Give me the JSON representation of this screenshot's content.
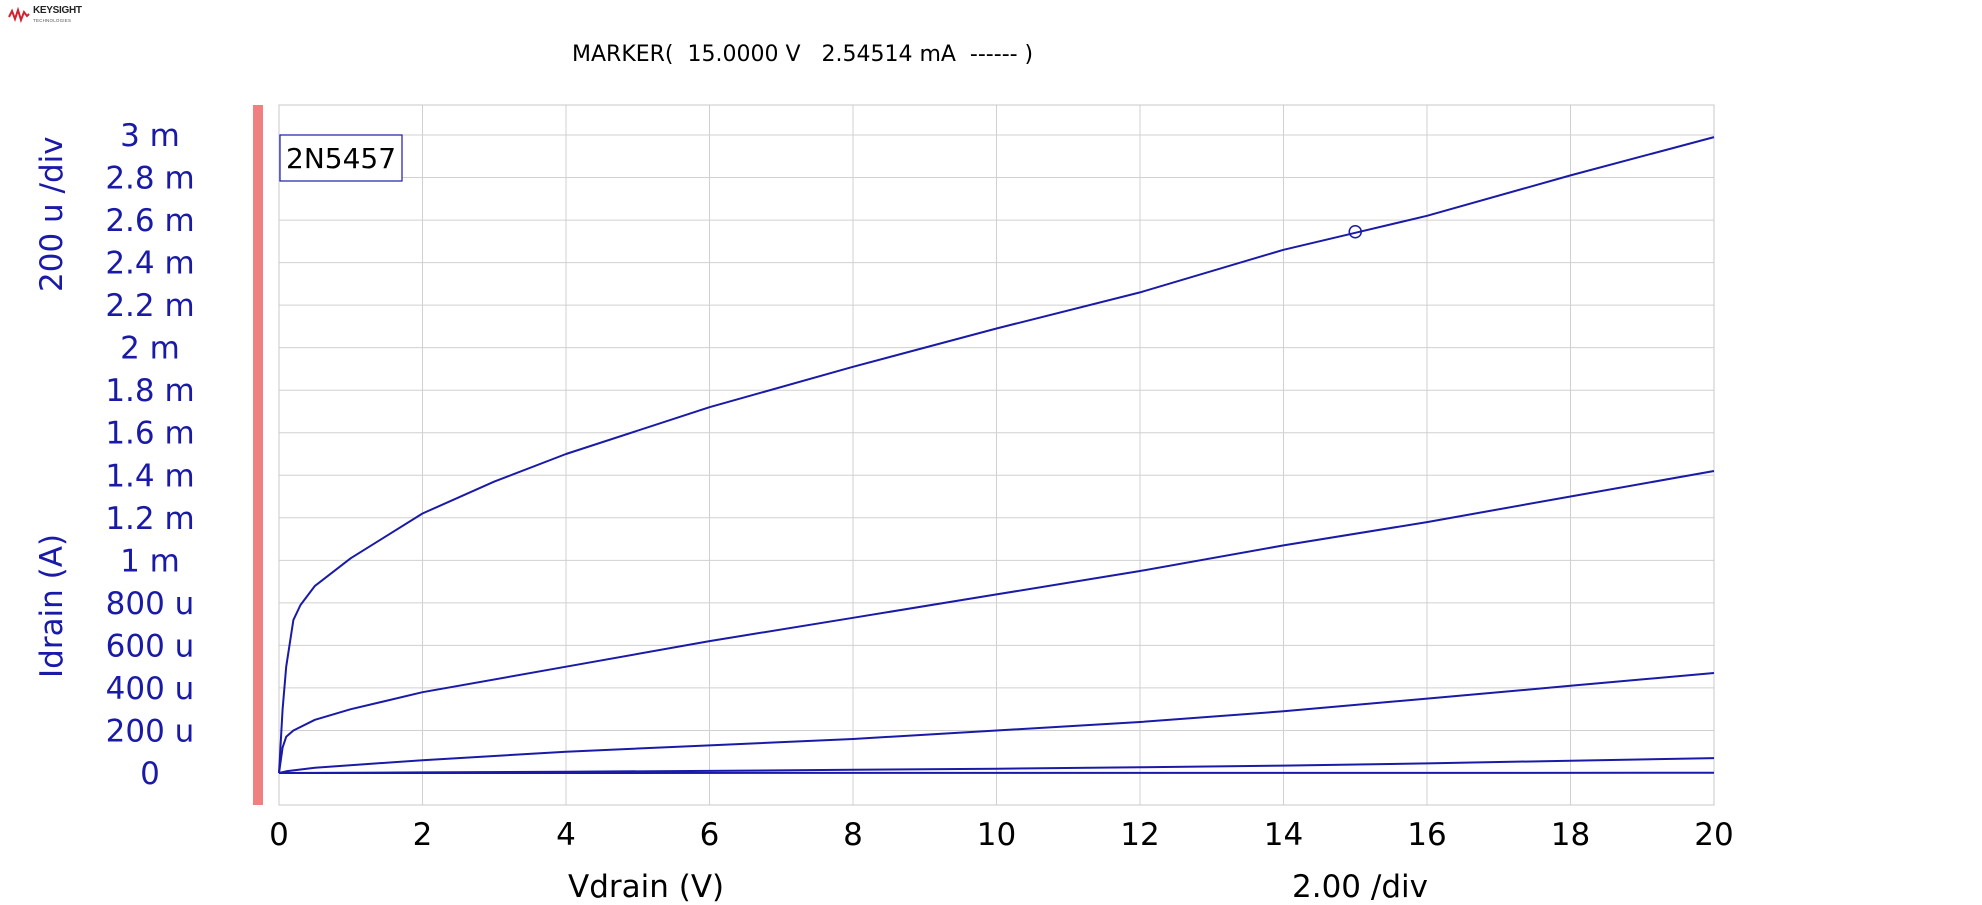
{
  "brand": {
    "name": "KEYSIGHT",
    "tagline": "TECHNOLOGIES"
  },
  "marker_readout": "MARKER(  15.0000 V   2.54514 mA  ------ )",
  "colors": {
    "trace": "#1a1aa8",
    "grid": "#d0d0d0",
    "left_bar": "#f08080",
    "y_text": "#1a1aa8",
    "x_text": "#000000"
  },
  "chart_data": {
    "type": "line",
    "title": "2N5457",
    "xlabel": "Vdrain (V)",
    "ylabel": "Idrain (A)",
    "x_scale": "2.00  /div",
    "y_scale": "200 u /div",
    "xlim": [
      0,
      20
    ],
    "ylim": [
      0,
      0.003
    ],
    "grid": true,
    "x_ticks": [
      0,
      2,
      4,
      6,
      8,
      10,
      12,
      14,
      16,
      18,
      20
    ],
    "x_tick_labels": [
      "0",
      "2",
      "4",
      "6",
      "8",
      "10",
      "12",
      "14",
      "16",
      "18",
      "20"
    ],
    "y_ticks": [
      0,
      0.0002,
      0.0004,
      0.0006,
      0.0008,
      0.001,
      0.0012,
      0.0014,
      0.0016,
      0.0018,
      0.002,
      0.0022,
      0.0024,
      0.0026,
      0.0028,
      0.003
    ],
    "y_tick_labels": [
      "0",
      "200 u",
      "400 u",
      "600 u",
      "800 u",
      "1 m",
      "1.2 m",
      "1.4 m",
      "1.6 m",
      "1.8 m",
      "2 m",
      "2.2 m",
      "2.4 m",
      "2.6 m",
      "2.8 m",
      "3 m"
    ],
    "series": [
      {
        "x": [
          0,
          0.05,
          0.1,
          0.2,
          0.3,
          0.5,
          1,
          2,
          3,
          4,
          6,
          8,
          10,
          12,
          14,
          15,
          16,
          18,
          20
        ],
        "y": [
          0,
          0.0003,
          0.0005,
          0.00072,
          0.00079,
          0.00088,
          0.00101,
          0.00122,
          0.00137,
          0.0015,
          0.00172,
          0.00191,
          0.00209,
          0.00226,
          0.00246,
          0.00254,
          0.00262,
          0.00281,
          0.00299
        ]
      },
      {
        "x": [
          0,
          0.05,
          0.1,
          0.2,
          0.5,
          1,
          2,
          4,
          6,
          8,
          10,
          12,
          14,
          16,
          18,
          20
        ],
        "y": [
          0,
          0.00012,
          0.00017,
          0.0002,
          0.00025,
          0.0003,
          0.00038,
          0.0005,
          0.00062,
          0.00073,
          0.00084,
          0.00095,
          0.00107,
          0.00118,
          0.0013,
          0.00142
        ]
      },
      {
        "x": [
          0,
          0.1,
          0.5,
          2,
          4,
          6,
          8,
          10,
          12,
          14,
          16,
          18,
          20
        ],
        "y": [
          0,
          8e-06,
          2.5e-05,
          6e-05,
          0.0001,
          0.00013,
          0.00016,
          0.0002,
          0.00024,
          0.00029,
          0.00035,
          0.00041,
          0.00047
        ]
      },
      {
        "x": [
          0,
          2,
          4,
          6,
          8,
          10,
          12,
          14,
          16,
          18,
          20
        ],
        "y": [
          0,
          3e-06,
          6e-06,
          1e-05,
          1.5e-05,
          2e-05,
          2.7e-05,
          3.5e-05,
          4.5e-05,
          5.8e-05,
          7e-05
        ]
      },
      {
        "x": [
          0,
          20
        ],
        "y": [
          0,
          1e-06
        ]
      }
    ],
    "marker": {
      "x": 15.0,
      "y": 0.00254514
    }
  }
}
